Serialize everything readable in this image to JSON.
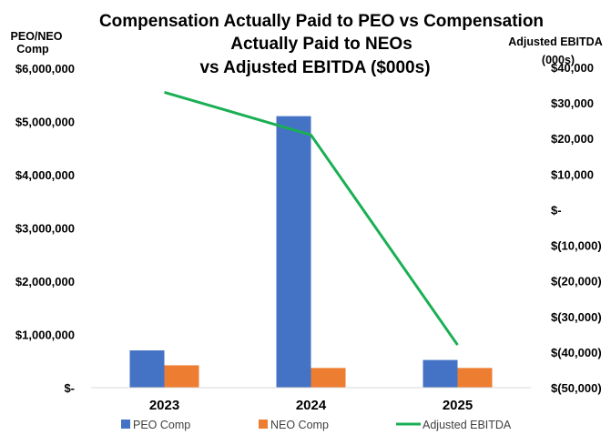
{
  "chart_data": {
    "type": "bar",
    "title": [
      "Compensation Actually Paid to PEO vs Compensation",
      "Actually Paid to NEOs",
      "vs Adjusted EBITDA ($000s)"
    ],
    "ylabel_left": [
      "PEO/NEO",
      "Comp"
    ],
    "ylabel_right": [
      "Adjusted EBITDA",
      "(000s)"
    ],
    "categories": [
      "2023",
      "2024",
      "2025"
    ],
    "series": [
      {
        "name": "PEO Comp",
        "type": "bar",
        "axis": "left",
        "color": "#4472C4",
        "values": [
          700000,
          5100000,
          520000
        ]
      },
      {
        "name": "NEO Comp",
        "type": "bar",
        "axis": "left",
        "color": "#ED7D31",
        "values": [
          420000,
          370000,
          370000
        ]
      },
      {
        "name": "Adjusted EBITDA",
        "type": "line",
        "axis": "right",
        "color": "#1AAF54",
        "values": [
          33000,
          21000,
          -38000
        ]
      }
    ],
    "ylim_left": [
      0,
      6000000
    ],
    "ylim_right": [
      -50000,
      40000
    ],
    "left_ticks": [
      "$-",
      "$1,000,000",
      "$2,000,000",
      "$3,000,000",
      "$4,000,000",
      "$5,000,000",
      "$6,000,000"
    ],
    "right_ticks": [
      "$(50,000)",
      "$(40,000)",
      "$(30,000)",
      "$(20,000)",
      "$(10,000)",
      "$-",
      "$10,000",
      "$20,000",
      "$30,000",
      "$40,000"
    ],
    "grid": false,
    "legend_position": "bottom"
  }
}
